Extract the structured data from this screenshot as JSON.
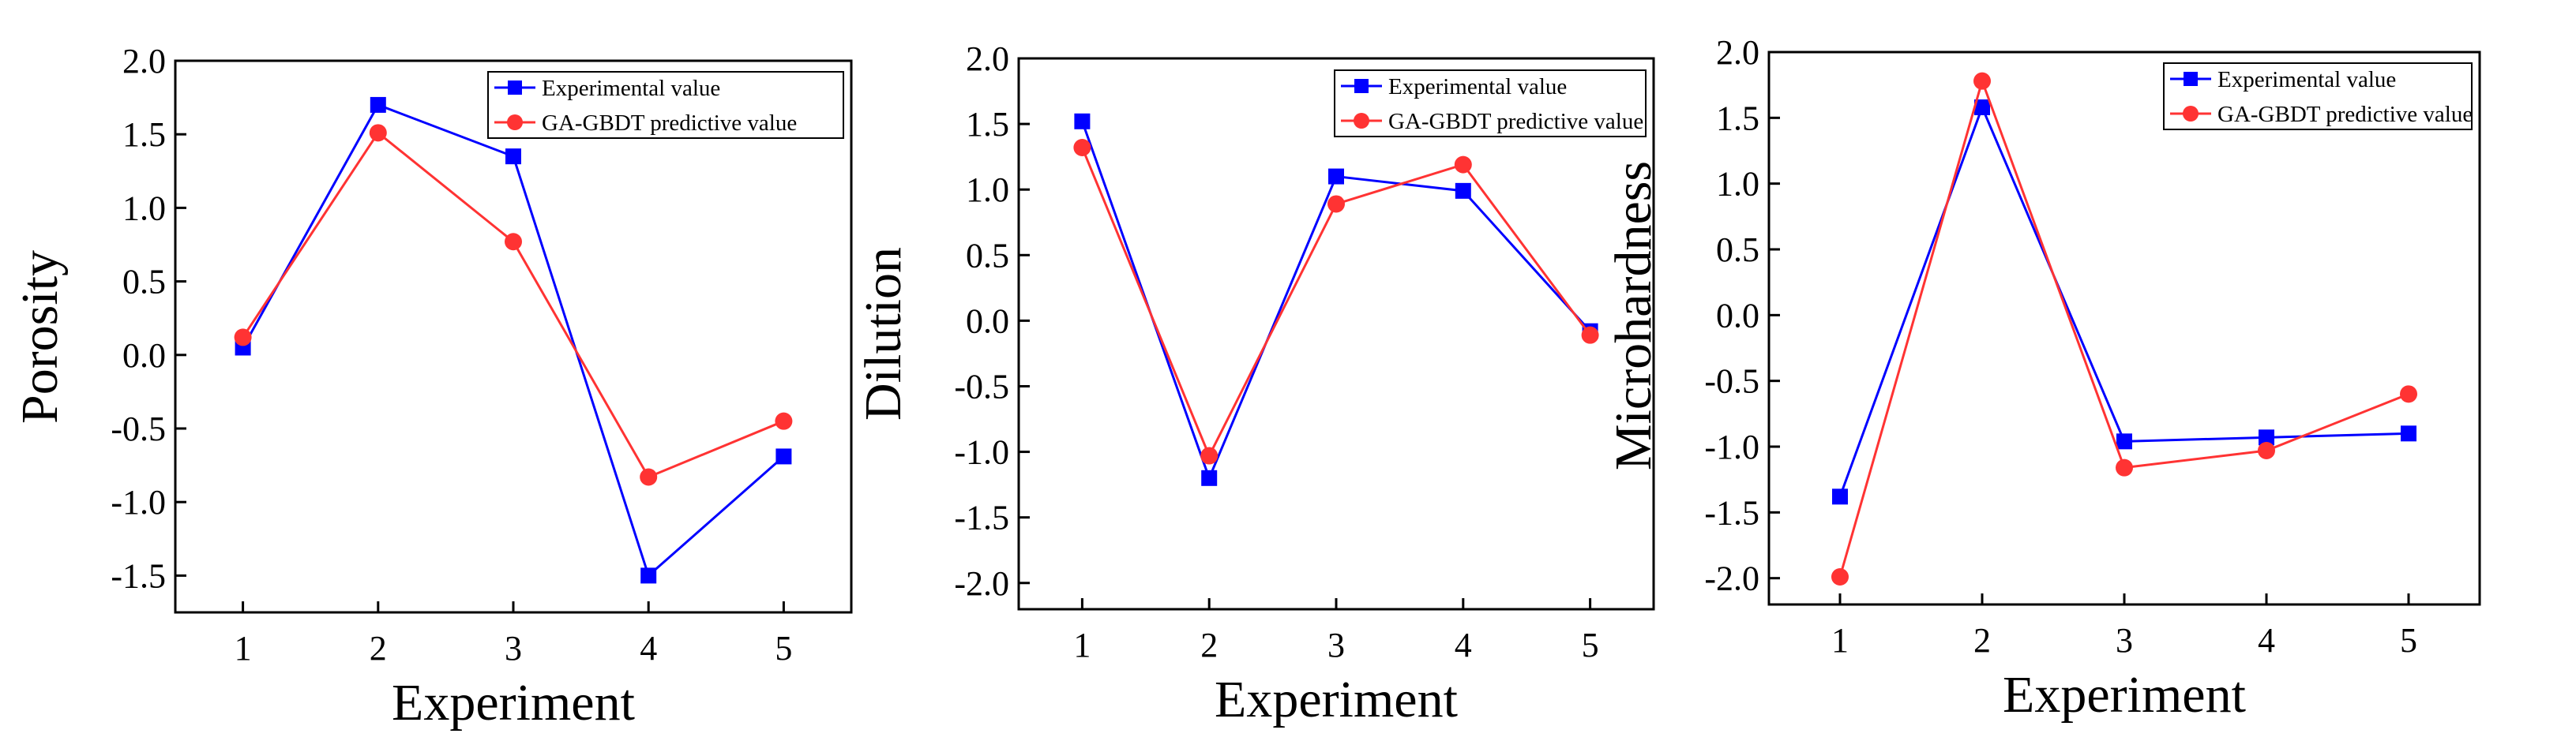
{
  "chart_data": [
    {
      "type": "line",
      "title": "",
      "xlabel": "Experiment",
      "ylabel": "Porosity",
      "categories": [
        "1",
        "2",
        "3",
        "4",
        "5"
      ],
      "xlim": [
        0.5,
        5.5
      ],
      "ylim": [
        -1.75,
        2.0
      ],
      "yticks": [
        "2.0",
        "1.5",
        "1.0",
        "0.5",
        "0.0",
        "-0.5",
        "-1.0",
        "-1.5"
      ],
      "legend_position": "top-right",
      "series": [
        {
          "name": "Experimental value",
          "color": "#0000ff",
          "marker": "square",
          "values": [
            0.05,
            1.7,
            1.35,
            -1.5,
            -0.69
          ]
        },
        {
          "name": "GA-GBDT predictive value",
          "color": "#ff3333",
          "marker": "circle",
          "values": [
            0.12,
            1.51,
            0.77,
            -0.83,
            -0.45
          ]
        }
      ]
    },
    {
      "type": "line",
      "title": "",
      "xlabel": "Experiment",
      "ylabel": "Dilution",
      "categories": [
        "1",
        "2",
        "3",
        "4",
        "5"
      ],
      "xlim": [
        0.5,
        5.5
      ],
      "ylim": [
        -2.2,
        2.0
      ],
      "yticks": [
        "2.0",
        "1.5",
        "1.0",
        "0.5",
        "0.0",
        "-0.5",
        "-1.0",
        "-1.5",
        "-2.0"
      ],
      "legend_position": "top-right",
      "series": [
        {
          "name": "Experimental value",
          "color": "#0000ff",
          "marker": "square",
          "values": [
            1.52,
            -1.2,
            1.1,
            0.99,
            -0.08
          ]
        },
        {
          "name": "GA-GBDT predictive value",
          "color": "#ff3333",
          "marker": "circle",
          "values": [
            1.32,
            -1.03,
            0.89,
            1.19,
            -0.11
          ]
        }
      ]
    },
    {
      "type": "line",
      "title": "",
      "xlabel": "Experiment",
      "ylabel": "Microhardness",
      "categories": [
        "1",
        "2",
        "3",
        "4",
        "5"
      ],
      "xlim": [
        0.5,
        5.5
      ],
      "ylim": [
        -2.2,
        2.0
      ],
      "yticks": [
        "2.0",
        "1.5",
        "1.0",
        "0.5",
        "0.0",
        "-0.5",
        "-1.0",
        "-1.5",
        "-2.0"
      ],
      "legend_position": "top-right",
      "series": [
        {
          "name": "Experimental value",
          "color": "#0000ff",
          "marker": "square",
          "values": [
            -1.38,
            1.58,
            -0.96,
            -0.93,
            -0.9
          ]
        },
        {
          "name": "GA-GBDT predictive value",
          "color": "#ff3333",
          "marker": "circle",
          "values": [
            -1.99,
            1.78,
            -1.16,
            -1.03,
            -0.6
          ]
        }
      ]
    }
  ]
}
